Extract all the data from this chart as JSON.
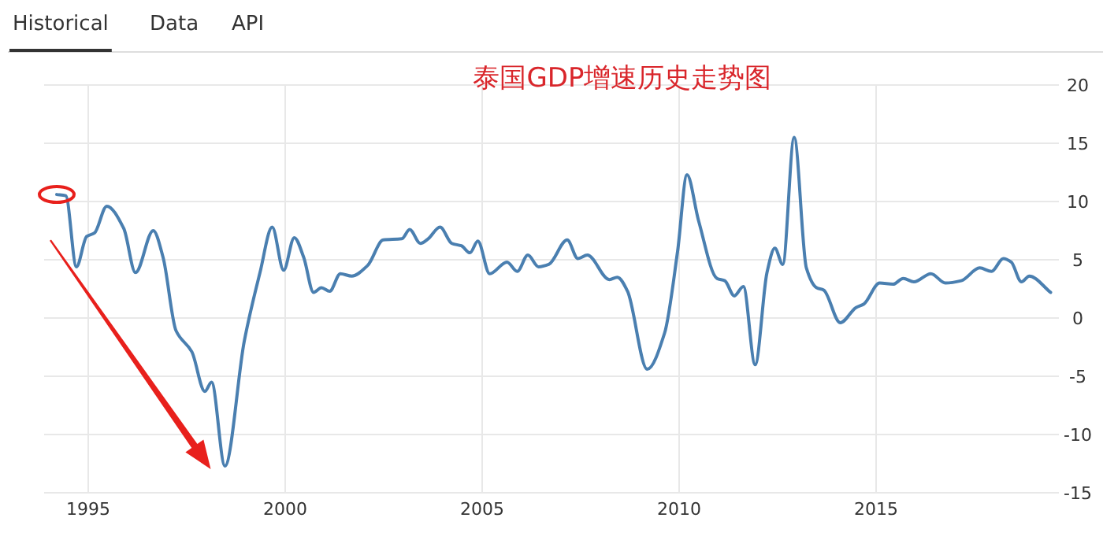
{
  "chart_data": {
    "type": "line",
    "title": "泰国GDP增速历史走势图",
    "annotations": [
      "Historical",
      "Data",
      "API"
    ],
    "series": [
      {
        "color": "#4a7fb0",
        "x": [
          1994.2,
          1994.43,
          1994.7,
          1994.96,
          1995.16,
          1995.47,
          1995.9,
          1996.2,
          1996.65,
          1996.9,
          1997.23,
          1997.63,
          1997.96,
          1998.13,
          1998.47,
          1998.96,
          1999.36,
          1999.67,
          1999.96,
          2000.23,
          2000.47,
          2000.72,
          2000.92,
          2001.13,
          2001.4,
          2001.69,
          2002.09,
          2002.49,
          2002.96,
          2003.16,
          2003.43,
          2003.63,
          2003.93,
          2004.23,
          2004.47,
          2004.69,
          2004.89,
          2005.19,
          2005.63,
          2005.89,
          2006.16,
          2006.43,
          2006.69,
          2007.16,
          2007.43,
          2007.67,
          2008.23,
          2008.43,
          2008.69,
          2009.19,
          2009.63,
          2009.96,
          2010.2,
          2010.49,
          2010.96,
          2011.16,
          2011.4,
          2011.63,
          2011.93,
          2012.23,
          2012.43,
          2012.63,
          2012.92,
          2013.23,
          2013.49,
          2013.67,
          2014.09,
          2014.49,
          2014.69,
          2015.09,
          2015.43,
          2015.69,
          2015.96,
          2016.39,
          2016.76,
          2017.16,
          2017.63,
          2017.93,
          2018.23,
          2018.43,
          2018.69,
          2018.89,
          2019.43
        ],
        "values": [
          10.6,
          10.5,
          4.4,
          7.0,
          7.3,
          9.6,
          7.7,
          3.9,
          7.5,
          5.2,
          -1.1,
          -2.9,
          -6.3,
          -5.5,
          -12.7,
          -2.0,
          3.9,
          7.8,
          4.1,
          6.9,
          5.2,
          2.2,
          2.6,
          2.3,
          3.8,
          3.6,
          4.5,
          6.7,
          6.8,
          7.6,
          6.4,
          6.8,
          7.8,
          6.4,
          6.2,
          5.6,
          6.6,
          3.8,
          4.8,
          4.0,
          5.4,
          4.4,
          4.6,
          6.7,
          5.1,
          5.4,
          3.3,
          3.5,
          2.3,
          -4.4,
          -1.3,
          5.7,
          12.3,
          8.4,
          3.4,
          3.2,
          1.9,
          2.7,
          -4.0,
          3.9,
          6.0,
          4.6,
          15.5,
          4.3,
          2.6,
          2.4,
          -0.4,
          0.9,
          1.2,
          3.0,
          2.9,
          3.4,
          3.1,
          3.8,
          3.0,
          3.2,
          4.3,
          4.0,
          5.1,
          4.8,
          3.1,
          3.6,
          2.2
        ]
      }
    ],
    "xlim": [
      1993.88,
      2019.64
    ],
    "xticks": [
      1995,
      2000,
      2005,
      2010,
      2015
    ],
    "ylim": [
      -15,
      20
    ],
    "yticks": [
      -15,
      -10,
      -5,
      0,
      5,
      10,
      15,
      20
    ],
    "grid": true
  }
}
